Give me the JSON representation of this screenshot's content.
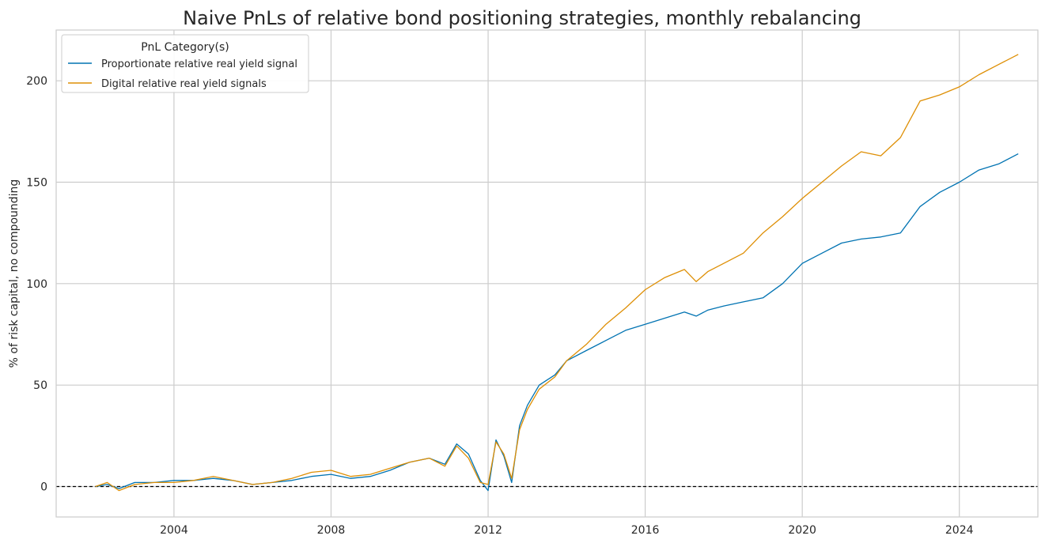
{
  "chart_data": {
    "type": "line",
    "title": "Naive PnLs of relative bond positioning strategies, monthly rebalancing",
    "xlabel": "",
    "ylabel": "% of risk capital, no compounding",
    "xlim": [
      2001.0,
      2026.0
    ],
    "ylim": [
      -15,
      225
    ],
    "x_ticks": [
      2004,
      2008,
      2012,
      2016,
      2020,
      2024
    ],
    "x_tick_labels": [
      "2004",
      "2008",
      "2012",
      "2016",
      "2020",
      "2024"
    ],
    "y_ticks": [
      0,
      50,
      100,
      150,
      200
    ],
    "y_tick_labels": [
      "0",
      "50",
      "100",
      "150",
      "200"
    ],
    "grid": true,
    "zero_line": {
      "value": 0,
      "style": "dashed",
      "color": "#000000"
    },
    "legend": {
      "title": "PnL Category(s)",
      "placement": "top-left"
    },
    "series": [
      {
        "name": "Proportionate relative real yield signal",
        "color": "#0173b2",
        "x": [
          2002.0,
          2002.3,
          2002.6,
          2003.0,
          2003.5,
          2004.0,
          2004.5,
          2005.0,
          2005.5,
          2006.0,
          2006.5,
          2007.0,
          2007.5,
          2008.0,
          2008.5,
          2009.0,
          2009.5,
          2010.0,
          2010.5,
          2010.9,
          2011.2,
          2011.5,
          2011.8,
          2012.0,
          2012.2,
          2012.4,
          2012.6,
          2012.8,
          2013.0,
          2013.3,
          2013.7,
          2014.0,
          2014.5,
          2015.0,
          2015.5,
          2016.0,
          2016.5,
          2017.0,
          2017.3,
          2017.6,
          2018.0,
          2018.5,
          2019.0,
          2019.5,
          2020.0,
          2020.5,
          2021.0,
          2021.5,
          2022.0,
          2022.5,
          2023.0,
          2023.5,
          2024.0,
          2024.5,
          2025.0,
          2025.5
        ],
        "values": [
          0,
          1,
          -1,
          2,
          2,
          3,
          3,
          4,
          3,
          1,
          2,
          3,
          5,
          6,
          4,
          5,
          8,
          12,
          14,
          11,
          21,
          16,
          3,
          -2,
          23,
          15,
          2,
          30,
          40,
          50,
          55,
          62,
          67,
          72,
          77,
          80,
          83,
          86,
          84,
          87,
          89,
          91,
          93,
          100,
          110,
          115,
          120,
          122,
          123,
          125,
          138,
          145,
          150,
          156,
          159,
          164
        ]
      },
      {
        "name": "Digital relative real yield signals",
        "color": "#de8f05",
        "x": [
          2002.0,
          2002.3,
          2002.6,
          2003.0,
          2003.5,
          2004.0,
          2004.5,
          2005.0,
          2005.5,
          2006.0,
          2006.5,
          2007.0,
          2007.5,
          2008.0,
          2008.5,
          2009.0,
          2009.5,
          2010.0,
          2010.5,
          2010.9,
          2011.2,
          2011.5,
          2011.8,
          2012.0,
          2012.2,
          2012.4,
          2012.6,
          2012.8,
          2013.0,
          2013.3,
          2013.7,
          2014.0,
          2014.5,
          2015.0,
          2015.5,
          2016.0,
          2016.5,
          2017.0,
          2017.3,
          2017.6,
          2018.0,
          2018.5,
          2019.0,
          2019.5,
          2020.0,
          2020.5,
          2021.0,
          2021.5,
          2022.0,
          2022.5,
          2023.0,
          2023.5,
          2024.0,
          2024.5,
          2025.0,
          2025.5
        ],
        "values": [
          0,
          2,
          -2,
          1,
          2,
          2,
          3,
          5,
          3,
          1,
          2,
          4,
          7,
          8,
          5,
          6,
          9,
          12,
          14,
          10,
          20,
          14,
          2,
          1,
          22,
          16,
          4,
          28,
          38,
          48,
          54,
          62,
          70,
          80,
          88,
          97,
          103,
          107,
          101,
          106,
          110,
          115,
          125,
          133,
          142,
          150,
          158,
          165,
          163,
          172,
          190,
          193,
          197,
          203,
          208,
          213
        ]
      }
    ]
  }
}
